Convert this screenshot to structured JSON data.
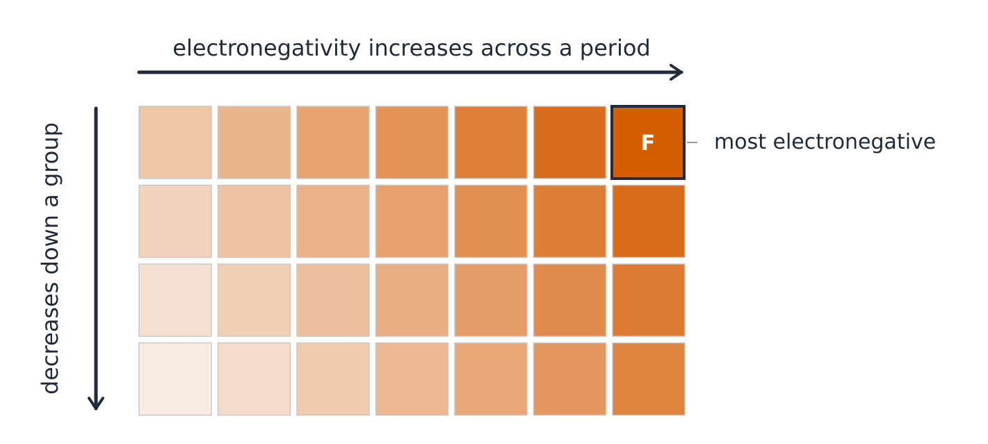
{
  "labels": {
    "top_axis": "electronegativity increases across a period",
    "left_axis": "decreases down a group",
    "callout": "most electronegative",
    "highlight_symbol": "F"
  },
  "colors": {
    "axis": "#222b3a",
    "cell_border": "#c8c8c8",
    "highlight_border": "#222b3a",
    "callout_line": "#9a9a9a",
    "highlight_text": "#ffffff"
  },
  "grid": {
    "rows": 4,
    "cols": 7,
    "cell_colors": [
      [
        "#f0c6a8",
        "#ebb58c",
        "#e7a370",
        "#e39357",
        "#de8038",
        "#d96d1e",
        "#d35f00"
      ],
      [
        "#f3d3bd",
        "#efc3a3",
        "#ebb28a",
        "#e7a06e",
        "#e28f52",
        "#dd7e36",
        "#d86c1b"
      ],
      [
        "#f5e0d1",
        "#f1cfb5",
        "#eebe9c",
        "#e9ae82",
        "#e59c67",
        "#e08b4d",
        "#dc7b31"
      ],
      [
        "#f9ece3",
        "#f5dbc9",
        "#f0cbae",
        "#ecb993",
        "#e8a878",
        "#e3975e",
        "#e08540"
      ]
    ],
    "highlight": {
      "row": 0,
      "col": 6
    }
  }
}
